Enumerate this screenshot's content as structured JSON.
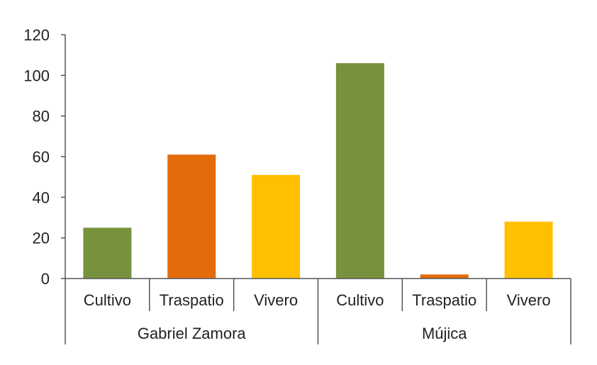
{
  "chart_data": {
    "type": "bar",
    "title": "",
    "xlabel": "",
    "ylabel": "",
    "ylim": [
      0,
      120
    ],
    "yticks": [
      0,
      20,
      40,
      60,
      80,
      100,
      120
    ],
    "grid": false,
    "legend": "none",
    "groups": [
      {
        "name": "Gabriel Zamora",
        "bars": [
          {
            "category": "Cultivo",
            "value": 25,
            "color": "#76923C"
          },
          {
            "category": "Traspatio",
            "value": 61,
            "color": "#E36C0A"
          },
          {
            "category": "Vivero",
            "value": 51,
            "color": "#FFC000"
          }
        ]
      },
      {
        "name": "Mújica",
        "bars": [
          {
            "category": "Cultivo",
            "value": 106,
            "color": "#76923C"
          },
          {
            "category": "Traspatio",
            "value": 2,
            "color": "#E36C0A"
          },
          {
            "category": "Vivero",
            "value": 28,
            "color": "#FFC000"
          }
        ]
      }
    ]
  }
}
